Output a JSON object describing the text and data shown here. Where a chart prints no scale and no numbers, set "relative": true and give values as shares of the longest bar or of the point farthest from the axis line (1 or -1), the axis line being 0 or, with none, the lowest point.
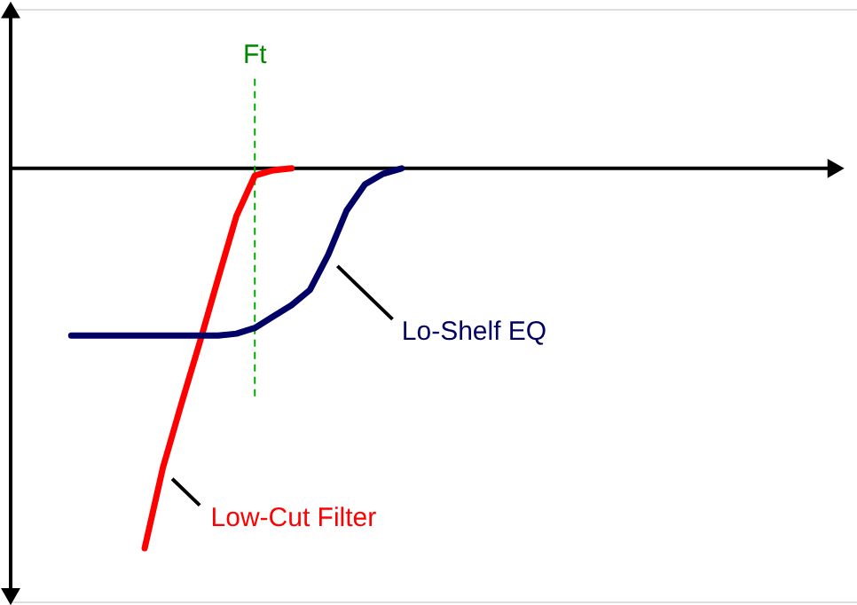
{
  "chart_data": {
    "type": "line",
    "relative": true,
    "marker": "none",
    "line_style": "solid",
    "categories": [
      null,
      null,
      null,
      null,
      null,
      null,
      null,
      null,
      null,
      null,
      null,
      null,
      null,
      null,
      null,
      null,
      null,
      null,
      null
    ],
    "series": [
      {
        "name": "Low-Cut Filter",
        "color": "#ff0000",
        "values": [
          null,
          null,
          null,
          null,
          -1,
          -0.787,
          -0.62,
          -0.458,
          -0.29,
          -0.125,
          -0.019,
          -0.005,
          0,
          null,
          null,
          null,
          null,
          null,
          null
        ]
      },
      {
        "name": "Lo-Shelf EQ",
        "color": "#000066",
        "values": [
          -0.44,
          -0.44,
          -0.44,
          -0.44,
          -0.44,
          -0.44,
          -0.44,
          -0.44,
          -0.44,
          -0.435,
          -0.42,
          -0.39,
          -0.36,
          -0.32,
          -0.227,
          -0.111,
          -0.042,
          -0.014,
          0
        ]
      }
    ],
    "annotations": [
      "Ft"
    ]
  }
}
